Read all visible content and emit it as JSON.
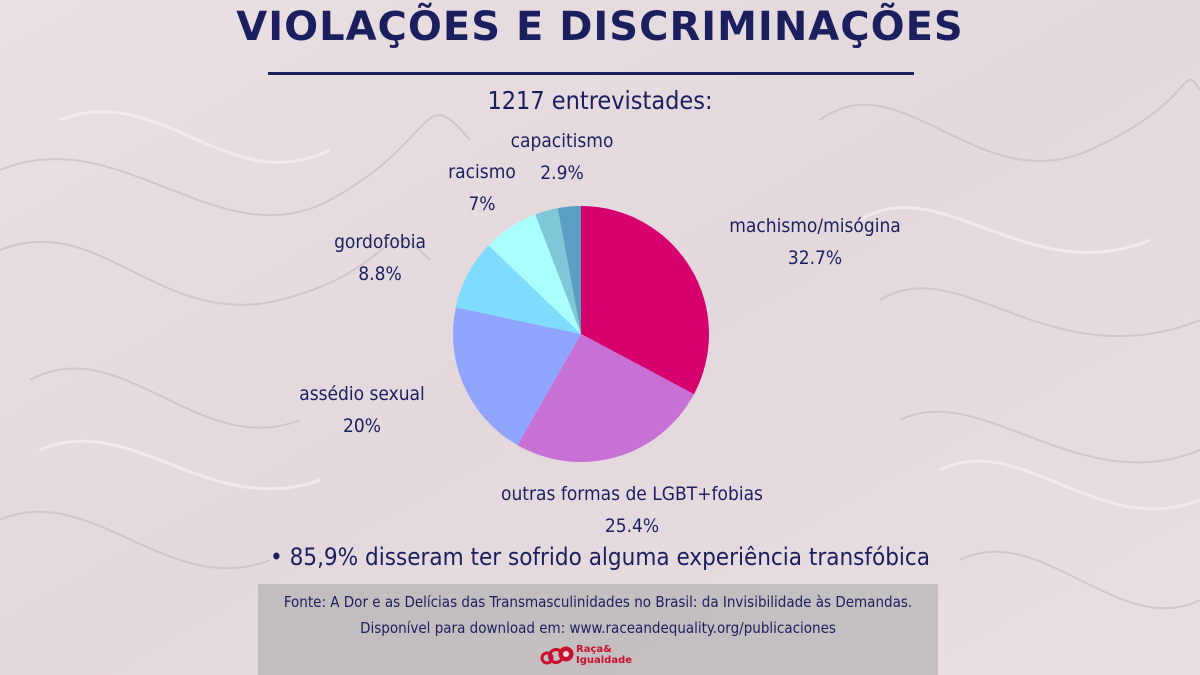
{
  "title": "VIOLAÇÕES E DISCRIMINAÇÕES",
  "subtitle": "1217 entrevistades:",
  "note": "• 85,9% disseram ter sofrido alguma experiência transfóbica",
  "source": {
    "line1": "Fonte: A Dor e as Delícias das Transmasculinidades no Brasil: da Invisibilidade às Demandas.",
    "line2": "Disponível para download em: www.raceandequality.org/publicaciones"
  },
  "logo": {
    "line1": "Raça&",
    "line2": "Igualdade"
  },
  "colors": {
    "text": "#1b1f5e",
    "logo": "#c8102e"
  },
  "chart_data": {
    "type": "pie",
    "start": "12 o'clock, clockwise",
    "slices": [
      {
        "label": "machismo/misógina",
        "value": 32.7,
        "value_label": "32.7%",
        "color": "#d6006f"
      },
      {
        "label": "outras formas de LGBT+fobias",
        "value": 25.4,
        "value_label": "25.4%",
        "color": "#c771d6"
      },
      {
        "label": "assédio sexual",
        "value": 20,
        "value_label": "20%",
        "color": "#8fa5ff"
      },
      {
        "label": "gordofobia",
        "value": 8.8,
        "value_label": "8.8%",
        "color": "#7ddcff"
      },
      {
        "label": "racismo",
        "value": 7,
        "value_label": "7%",
        "color": "#aaffff"
      },
      {
        "label": "",
        "value": 2.9,
        "value_label": "",
        "color": "#7ec7d9"
      },
      {
        "label": "capacitismo",
        "value": 2.9,
        "value_label": "2.9%",
        "color": "#5a9fc4"
      }
    ]
  }
}
